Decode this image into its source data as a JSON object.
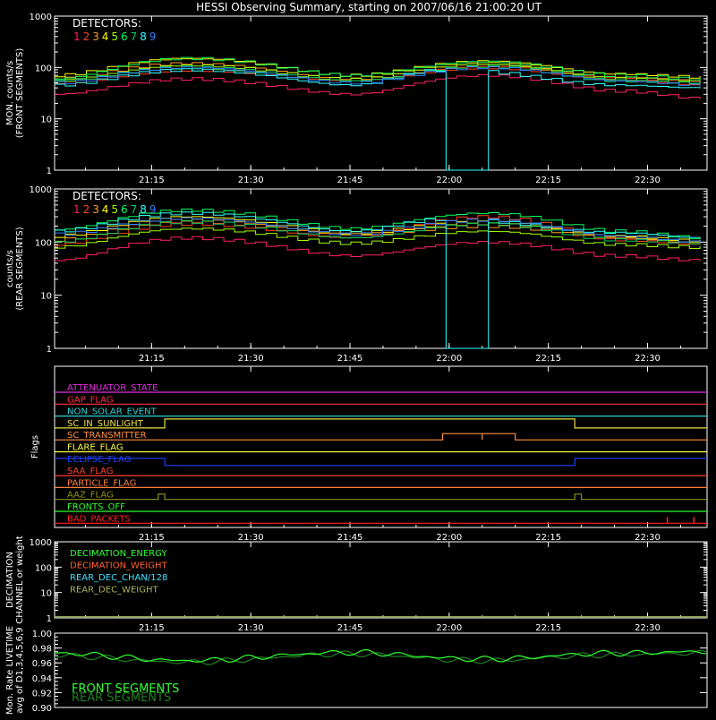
{
  "title": "HESSI Observing Summary, starting on 2007/06/16 21:00:20 UT",
  "x_tick_labels": [
    "21:15",
    "21:30",
    "21:45",
    "22:00",
    "22:15",
    "22:30"
  ],
  "detector_colors": [
    "#ff2060",
    "#ff4020",
    "#ffa020",
    "#ffff00",
    "#a0ff00",
    "#00ff60",
    "#00d060",
    "#30ffff",
    "#3080ff"
  ],
  "front_panel": {
    "ylabel_lines": [
      "MON. counts/s",
      "(FRONT SEGMENTS)"
    ],
    "y_tick_labels": [
      "1",
      "10",
      "100",
      "1000"
    ],
    "legend_title": "DETECTORS:",
    "legend_numbers": [
      "1",
      "2",
      "3",
      "4",
      "5",
      "6",
      "7",
      "8",
      "9"
    ]
  },
  "rear_panel": {
    "ylabel_lines": [
      "counts/s",
      "(REAR SEGMENTS)"
    ],
    "y_tick_labels": [
      "1",
      "10",
      "100",
      "1000"
    ],
    "legend_title": "DETECTORS:",
    "legend_numbers": [
      "1",
      "2",
      "3",
      "4",
      "5",
      "6",
      "7",
      "8",
      "9"
    ]
  },
  "flags_panel": {
    "ylabel": "Flags",
    "flags": [
      {
        "label": "ATTENUATOR_STATE",
        "color": "#e030e0"
      },
      {
        "label": "GAP_FLAG",
        "color": "#ff3040"
      },
      {
        "label": "NON_SOLAR_EVENT",
        "color": "#30d0d0"
      },
      {
        "label": "SC_IN_SUNLIGHT",
        "color": "#e8e040"
      },
      {
        "label": "SC_TRANSMITTER",
        "color": "#ff9040"
      },
      {
        "label": "FLARE_FLAG",
        "color": "#ffff40"
      },
      {
        "label": "ECLIPSE_FLAG",
        "color": "#2040ff"
      },
      {
        "label": "SAA_FLAG",
        "color": "#ff4030"
      },
      {
        "label": "PARTICLE_FLAG",
        "color": "#ff8040"
      },
      {
        "label": "AAZ_FLAG",
        "color": "#909020"
      },
      {
        "label": "FRONTS_OFF",
        "color": "#30ff30"
      },
      {
        "label": "BAD_PACKETS",
        "color": "#ff2020"
      }
    ]
  },
  "decimation_panel": {
    "ylabel_lines": [
      "DECIMATION",
      "CHANNEL or weight"
    ],
    "y_tick_labels": [
      "1",
      "10",
      "100",
      "1000"
    ],
    "legend": [
      {
        "label": "DECIMATION_ENERGY",
        "color": "#30ff30"
      },
      {
        "label": "DECIMATION_WEIGHT",
        "color": "#ff6030"
      },
      {
        "label": "REAR_DEC_CHAN/128",
        "color": "#40e0ff"
      },
      {
        "label": "REAR_DEC_WEIGHT",
        "color": "#b0b060"
      }
    ]
  },
  "livetime_panel": {
    "ylabel_lines": [
      "Mon. Rate LIVETIME",
      "avg of D1,3,4,5,6,9"
    ],
    "y_tick_labels": [
      "0.90",
      "0.92",
      "0.94",
      "0.96",
      "0.98",
      "1.00"
    ],
    "legend": [
      {
        "label": "FRONT SEGMENTS",
        "color": "#30ff30"
      },
      {
        "label": "REAR SEGMENTS",
        "color": "#208020"
      }
    ]
  },
  "chart_data": [
    {
      "type": "line",
      "title": "HESSI Observing Summary, starting on 2007/06/16 21:00:20 UT",
      "ylabel": "MON. counts/s (FRONT SEGMENTS)",
      "yscale": "log",
      "ylim": [
        1,
        1000
      ],
      "x_range": [
        "21:00:20",
        "22:39:00"
      ],
      "series": [
        {
          "name": "1",
          "x": [
            "21:00",
            "21:20",
            "21:45",
            "22:05",
            "22:25",
            "22:38"
          ],
          "values": [
            30,
            60,
            30,
            70,
            35,
            25
          ]
        },
        {
          "name": "2",
          "x": [
            "21:00",
            "21:20",
            "21:45",
            "22:05",
            "22:25",
            "22:38"
          ],
          "values": [
            50,
            90,
            55,
            100,
            60,
            45
          ]
        },
        {
          "name": "3",
          "x": [
            "21:00",
            "21:20",
            "21:45",
            "22:05",
            "22:25",
            "22:38"
          ],
          "values": [
            60,
            120,
            60,
            110,
            65,
            55
          ]
        },
        {
          "name": "4",
          "x": [
            "21:00",
            "21:20",
            "21:45",
            "22:05",
            "22:25",
            "22:38"
          ],
          "values": [
            70,
            150,
            70,
            130,
            75,
            65
          ]
        },
        {
          "name": "5",
          "x": [
            "21:00",
            "21:20",
            "21:45",
            "22:05",
            "22:25",
            "22:38"
          ],
          "values": [
            55,
            110,
            58,
            115,
            60,
            50
          ]
        },
        {
          "name": "6",
          "x": [
            "21:00",
            "21:20",
            "21:45",
            "22:05",
            "22:25",
            "22:38"
          ],
          "values": [
            60,
            150,
            70,
            130,
            70,
            60
          ]
        },
        {
          "name": "7",
          "x": [
            "21:00",
            "21:20",
            "21:45",
            "22:05",
            "22:25",
            "22:38"
          ],
          "values": [
            55,
            100,
            55,
            105,
            55,
            50
          ]
        },
        {
          "name": "8",
          "x": [
            "21:00",
            "21:20",
            "21:45",
            "21:59",
            "22:00",
            "22:05",
            "22:25",
            "22:38"
          ],
          "values": [
            45,
            90,
            45,
            90,
            1,
            1,
            45,
            40
          ]
        },
        {
          "name": "9",
          "x": [
            "21:00",
            "21:20",
            "21:45",
            "22:05",
            "22:25",
            "22:38"
          ],
          "values": [
            50,
            100,
            50,
            100,
            55,
            45
          ]
        }
      ]
    },
    {
      "type": "line",
      "ylabel": "counts/s (REAR SEGMENTS)",
      "yscale": "log",
      "ylim": [
        1,
        1000
      ],
      "series": [
        {
          "name": "1",
          "x": [
            "21:00",
            "21:20",
            "21:45",
            "22:05",
            "22:25",
            "22:38"
          ],
          "values": [
            45,
            120,
            55,
            100,
            55,
            45
          ]
        },
        {
          "name": "2",
          "x": [
            "21:00",
            "21:20",
            "21:45",
            "22:05",
            "22:25",
            "22:38"
          ],
          "values": [
            90,
            220,
            120,
            300,
            110,
            90
          ]
        },
        {
          "name": "3",
          "x": [
            "21:00",
            "21:20",
            "21:45",
            "22:05",
            "22:25",
            "22:38"
          ],
          "values": [
            110,
            260,
            140,
            200,
            120,
            95
          ]
        },
        {
          "name": "4",
          "x": [
            "21:00",
            "21:20",
            "21:45",
            "22:05",
            "22:25",
            "22:38"
          ],
          "values": [
            130,
            300,
            150,
            240,
            130,
            105
          ]
        },
        {
          "name": "5",
          "x": [
            "21:00",
            "21:20",
            "21:45",
            "22:05",
            "22:25",
            "22:38"
          ],
          "values": [
            80,
            180,
            95,
            160,
            90,
            80
          ]
        },
        {
          "name": "6",
          "x": [
            "21:00",
            "21:20",
            "21:45",
            "22:05",
            "22:25",
            "22:38"
          ],
          "values": [
            170,
            400,
            180,
            350,
            160,
            120
          ]
        },
        {
          "name": "7",
          "x": [
            "21:00",
            "21:20",
            "21:45",
            "22:05",
            "22:25",
            "22:38"
          ],
          "values": [
            100,
            240,
            120,
            220,
            110,
            95
          ]
        },
        {
          "name": "8",
          "x": [
            "21:00",
            "21:20",
            "21:45",
            "21:59",
            "22:00",
            "22:05",
            "22:25",
            "22:38"
          ],
          "values": [
            160,
            350,
            160,
            270,
            1,
            1,
            150,
            120
          ]
        },
        {
          "name": "9",
          "x": [
            "21:00",
            "21:20",
            "21:45",
            "22:05",
            "22:25",
            "22:38"
          ],
          "values": [
            140,
            280,
            140,
            260,
            130,
            100
          ]
        }
      ]
    },
    {
      "type": "line",
      "ylabel": "Flags",
      "series": [
        {
          "name": "SC_IN_SUNLIGHT",
          "on_intervals": [
            [
              "21:17",
              "22:19"
            ]
          ]
        },
        {
          "name": "SC_TRANSMITTER",
          "on_intervals": [
            [
              "21:59",
              "22:05"
            ],
            [
              "22:05",
              "22:10"
            ]
          ]
        },
        {
          "name": "ECLIPSE_FLAG",
          "on_intervals": [
            [
              "21:00",
              "21:17"
            ],
            [
              "22:19",
              "22:39"
            ]
          ]
        },
        {
          "name": "AAZ_FLAG",
          "on_intervals": [
            [
              "21:16",
              "21:17"
            ],
            [
              "22:19",
              "22:20"
            ]
          ]
        },
        {
          "name": "BAD_PACKETS",
          "on_intervals": [
            [
              "22:33",
              "22:33"
            ],
            [
              "22:37",
              "22:37"
            ]
          ]
        }
      ]
    },
    {
      "type": "line",
      "ylabel": "DECIMATION CHANNEL or weight",
      "yscale": "log",
      "ylim": [
        1,
        1000
      ],
      "series": [
        {
          "name": "DECIMATION_ENERGY",
          "values": [
            1,
            1
          ]
        },
        {
          "name": "DECIMATION_WEIGHT",
          "values": [
            1,
            1
          ]
        },
        {
          "name": "REAR_DEC_CHAN/128",
          "values": [
            1,
            1
          ]
        },
        {
          "name": "REAR_DEC_WEIGHT",
          "values": [
            1,
            1
          ]
        }
      ]
    },
    {
      "type": "line",
      "ylabel": "Mon. Rate LIVETIME avg of D1,3,4,5,6,9",
      "ylim": [
        0.9,
        1.0
      ],
      "series": [
        {
          "name": "FRONT SEGMENTS",
          "x": [
            "21:00",
            "21:20",
            "21:45",
            "22:05",
            "22:25",
            "22:38"
          ],
          "values": [
            0.973,
            0.963,
            0.974,
            0.965,
            0.973,
            0.975
          ]
        },
        {
          "name": "REAR SEGMENTS",
          "x": [
            "21:00",
            "21:20",
            "21:45",
            "22:05",
            "22:25",
            "22:38"
          ],
          "values": [
            0.97,
            0.961,
            0.972,
            0.963,
            0.971,
            0.973
          ]
        }
      ]
    }
  ]
}
